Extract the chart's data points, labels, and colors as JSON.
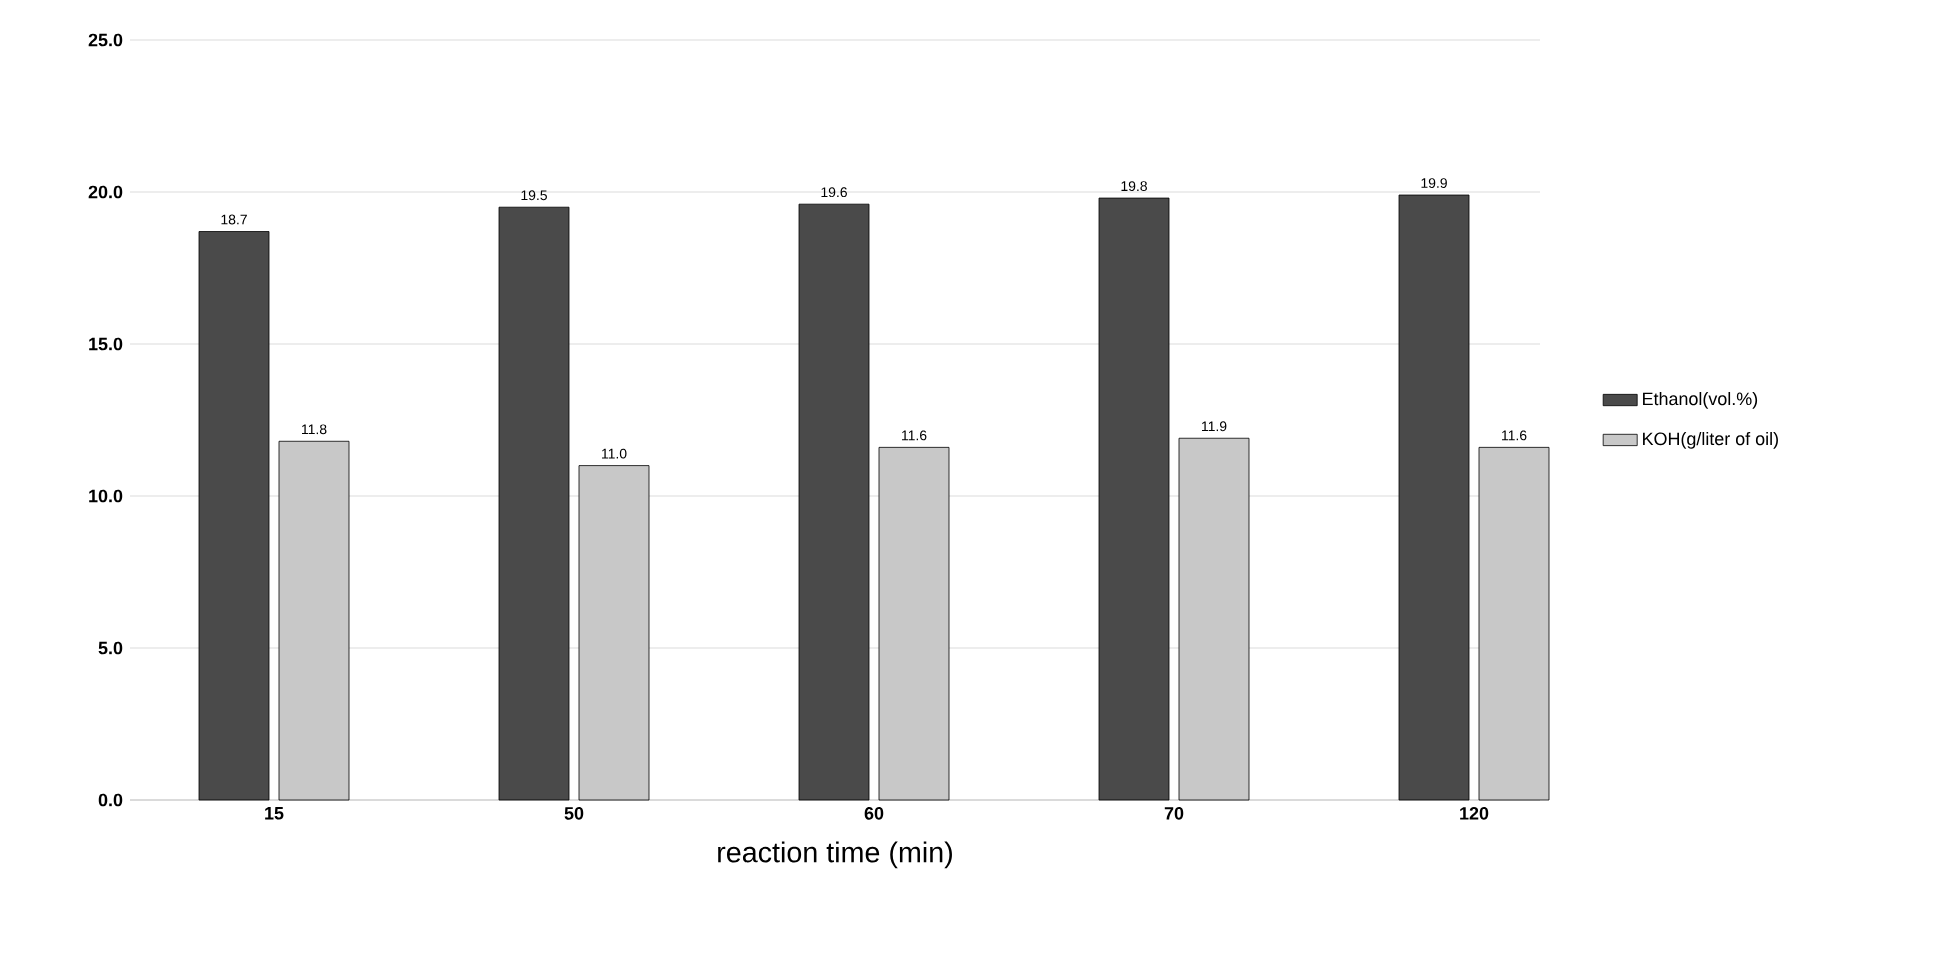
{
  "chart_data": {
    "type": "bar",
    "xlabel": "reaction time (min)",
    "categories": [
      "15",
      "50",
      "60",
      "70",
      "120"
    ],
    "series": [
      {
        "name": "Ethanol(vol.%)",
        "color": "#4a4a4a",
        "values": [
          18.7,
          19.5,
          19.6,
          19.8,
          19.9
        ],
        "value_labels": [
          "18.7",
          "19.5",
          "19.6",
          "19.8",
          "19.9"
        ]
      },
      {
        "name": "KOH(g/liter of oil)",
        "color": "#c8c8c8",
        "values": [
          11.8,
          11.0,
          11.6,
          11.9,
          11.6
        ],
        "value_labels": [
          "11.8",
          "11.0",
          "11.6",
          "11.9",
          "11.6"
        ]
      }
    ],
    "ylim": [
      0,
      25
    ],
    "yticks": [
      {
        "value": 0,
        "label": "0.0"
      },
      {
        "value": 5,
        "label": "5.0"
      },
      {
        "value": 10,
        "label": "10.0"
      },
      {
        "value": 15,
        "label": "15.0"
      },
      {
        "value": 20,
        "label": "20.0"
      },
      {
        "value": 25,
        "label": "25.0"
      }
    ],
    "grid": "y",
    "legend": "right"
  }
}
